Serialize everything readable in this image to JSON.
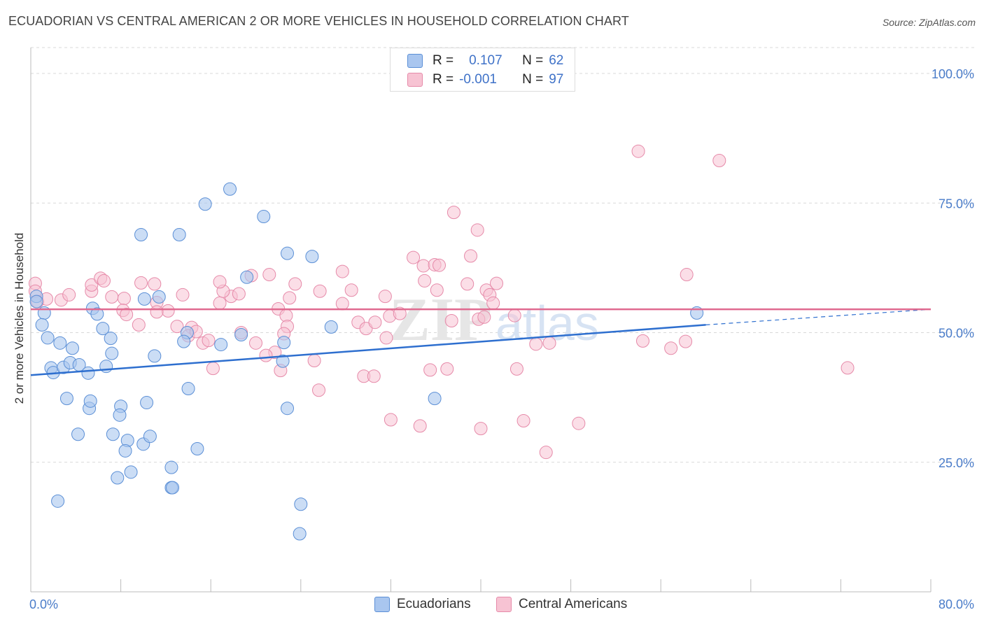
{
  "header": {
    "title": "ECUADORIAN VS CENTRAL AMERICAN 2 OR MORE VEHICLES IN HOUSEHOLD CORRELATION CHART",
    "source": "Source: ZipAtlas.com"
  },
  "watermark": "ZIPatlas",
  "colors": {
    "blue_fill": "#a9c6ef",
    "blue_stroke": "#5b8fd6",
    "blue_line": "#2e6fcf",
    "pink_fill": "#f7c3d3",
    "pink_stroke": "#e68aa9",
    "pink_line": "#e0698f",
    "tick_text": "#4a7cc9",
    "grid": "#d8d8d8"
  },
  "legend": {
    "rows": [
      {
        "r_label": "R =",
        "r_value": "0.107",
        "n_label": "N =",
        "n_value": "62",
        "color": "#a9c6ef",
        "border": "#5b8fd6"
      },
      {
        "r_label": "R =",
        "r_value": "-0.001",
        "n_label": "N =",
        "n_value": "97",
        "color": "#f7c3d3",
        "border": "#e68aa9"
      }
    ]
  },
  "bottom_legend": [
    {
      "label": "Ecuadorians",
      "color": "#a9c6ef",
      "border": "#5b8fd6"
    },
    {
      "label": "Central Americans",
      "color": "#f7c3d3",
      "border": "#e68aa9"
    }
  ],
  "chart_data": {
    "type": "scatter",
    "title": "ECUADORIAN VS CENTRAL AMERICAN 2 OR MORE VEHICLES IN HOUSEHOLD CORRELATION CHART",
    "xlabel": "",
    "ylabel": "2 or more Vehicles in Household",
    "xlim": [
      0,
      80
    ],
    "ylim": [
      0,
      105
    ],
    "x_tick_labels": [
      "0.0%",
      "80.0%"
    ],
    "y_ticks": [
      25,
      50,
      75,
      100
    ],
    "y_tick_labels": [
      "25.0%",
      "50.0%",
      "75.0%",
      "100.0%"
    ],
    "grid": true,
    "legend_position": "top-center",
    "series": [
      {
        "name": "Ecuadorians",
        "r": 0.107,
        "n": 62,
        "trend": {
          "x": [
            0,
            60
          ],
          "y": [
            41.8,
            51.5
          ],
          "dashed_to": [
            80,
            54.5
          ]
        },
        "points": [
          [
            0.5,
            57.0
          ],
          [
            0.5,
            56.0
          ],
          [
            1.2,
            53.8
          ],
          [
            1.0,
            51.5
          ],
          [
            1.5,
            49.0
          ],
          [
            2.6,
            48.0
          ],
          [
            3.7,
            47.0
          ],
          [
            7.1,
            48.9
          ],
          [
            1.8,
            43.2
          ],
          [
            2.0,
            42.3
          ],
          [
            2.9,
            43.3
          ],
          [
            3.5,
            44.2
          ],
          [
            4.3,
            43.8
          ],
          [
            5.1,
            42.2
          ],
          [
            6.7,
            43.5
          ],
          [
            7.2,
            46.0
          ],
          [
            5.5,
            54.7
          ],
          [
            5.9,
            53.6
          ],
          [
            6.4,
            50.8
          ],
          [
            11.0,
            45.5
          ],
          [
            11.4,
            56.9
          ],
          [
            10.1,
            56.5
          ],
          [
            13.9,
            50.0
          ],
          [
            13.6,
            48.3
          ],
          [
            16.9,
            47.7
          ],
          [
            18.7,
            49.6
          ],
          [
            19.2,
            60.7
          ],
          [
            22.5,
            48.1
          ],
          [
            22.4,
            44.5
          ],
          [
            26.7,
            51.1
          ],
          [
            20.7,
            72.4
          ],
          [
            17.7,
            77.7
          ],
          [
            15.5,
            74.8
          ],
          [
            9.8,
            68.9
          ],
          [
            13.2,
            68.9
          ],
          [
            22.8,
            65.3
          ],
          [
            25.0,
            64.7
          ],
          [
            59.2,
            53.8
          ],
          [
            3.2,
            37.3
          ],
          [
            5.2,
            35.4
          ],
          [
            5.3,
            36.8
          ],
          [
            8.0,
            35.8
          ],
          [
            7.9,
            34.1
          ],
          [
            10.3,
            36.5
          ],
          [
            14.0,
            39.2
          ],
          [
            22.8,
            35.4
          ],
          [
            35.9,
            37.3
          ],
          [
            4.2,
            30.4
          ],
          [
            7.3,
            30.4
          ],
          [
            8.6,
            29.2
          ],
          [
            10.0,
            28.5
          ],
          [
            8.4,
            27.2
          ],
          [
            10.6,
            30.0
          ],
          [
            14.8,
            27.6
          ],
          [
            7.7,
            22.0
          ],
          [
            8.9,
            23.1
          ],
          [
            12.5,
            20.1
          ],
          [
            12.6,
            20.1
          ],
          [
            12.5,
            24.0
          ],
          [
            2.4,
            17.5
          ],
          [
            24.0,
            16.9
          ],
          [
            23.9,
            11.2
          ]
        ]
      },
      {
        "name": "Central Americans",
        "r": -0.001,
        "n": 97,
        "trend": {
          "x": [
            0,
            80
          ],
          "y": [
            54.5,
            54.5
          ]
        },
        "points": [
          [
            0.4,
            59.5
          ],
          [
            0.4,
            58.0
          ],
          [
            0.6,
            56.0
          ],
          [
            1.4,
            56.5
          ],
          [
            2.7,
            56.3
          ],
          [
            3.4,
            57.3
          ],
          [
            5.4,
            58.0
          ],
          [
            5.4,
            59.2
          ],
          [
            6.2,
            60.5
          ],
          [
            6.5,
            60.0
          ],
          [
            7.2,
            56.9
          ],
          [
            8.3,
            56.6
          ],
          [
            8.2,
            54.3
          ],
          [
            8.5,
            53.5
          ],
          [
            9.6,
            51.5
          ],
          [
            9.8,
            59.6
          ],
          [
            11.0,
            59.4
          ],
          [
            11.2,
            55.8
          ],
          [
            12.2,
            54.2
          ],
          [
            11.2,
            54.0
          ],
          [
            13.0,
            51.2
          ],
          [
            14.3,
            51.0
          ],
          [
            14.0,
            49.4
          ],
          [
            14.7,
            50.2
          ],
          [
            15.3,
            48.0
          ],
          [
            13.5,
            57.3
          ],
          [
            16.8,
            55.7
          ],
          [
            17.8,
            57.0
          ],
          [
            18.5,
            57.5
          ],
          [
            19.6,
            61.0
          ],
          [
            21.2,
            61.2
          ],
          [
            22.0,
            54.6
          ],
          [
            22.7,
            53.3
          ],
          [
            23.5,
            59.4
          ],
          [
            23.0,
            56.7
          ],
          [
            22.8,
            51.2
          ],
          [
            22.5,
            49.8
          ],
          [
            21.7,
            46.2
          ],
          [
            20.9,
            45.6
          ],
          [
            20.0,
            48.0
          ],
          [
            18.7,
            50.0
          ],
          [
            17.1,
            58.0
          ],
          [
            16.8,
            59.8
          ],
          [
            15.8,
            48.5
          ],
          [
            16.2,
            43.1
          ],
          [
            25.7,
            58.0
          ],
          [
            27.7,
            61.8
          ],
          [
            27.7,
            55.6
          ],
          [
            28.5,
            58.2
          ],
          [
            29.1,
            52.0
          ],
          [
            29.8,
            50.8
          ],
          [
            30.6,
            52.0
          ],
          [
            31.6,
            49.0
          ],
          [
            31.9,
            53.2
          ],
          [
            31.5,
            57.0
          ],
          [
            32.8,
            53.7
          ],
          [
            34.0,
            64.5
          ],
          [
            34.9,
            62.9
          ],
          [
            35.0,
            60.0
          ],
          [
            35.9,
            63.1
          ],
          [
            36.3,
            63.0
          ],
          [
            36.1,
            58.2
          ],
          [
            37.4,
            52.3
          ],
          [
            38.8,
            59.4
          ],
          [
            39.1,
            64.8
          ],
          [
            39.8,
            52.6
          ],
          [
            40.5,
            58.2
          ],
          [
            40.3,
            53.0
          ],
          [
            40.8,
            57.3
          ],
          [
            41.1,
            55.7
          ],
          [
            37.6,
            73.2
          ],
          [
            39.7,
            69.8
          ],
          [
            41.4,
            59.5
          ],
          [
            43.0,
            53.3
          ],
          [
            44.9,
            47.8
          ],
          [
            46.1,
            48.0
          ],
          [
            54.4,
            48.4
          ],
          [
            56.9,
            47.0
          ],
          [
            58.2,
            48.3
          ],
          [
            58.3,
            61.2
          ],
          [
            29.6,
            41.6
          ],
          [
            30.5,
            41.6
          ],
          [
            22.2,
            42.7
          ],
          [
            25.2,
            44.6
          ],
          [
            25.6,
            38.9
          ],
          [
            35.5,
            42.8
          ],
          [
            37.0,
            43.0
          ],
          [
            43.2,
            43.0
          ],
          [
            32.0,
            33.2
          ],
          [
            34.6,
            32.0
          ],
          [
            40.0,
            31.5
          ],
          [
            43.8,
            33.0
          ],
          [
            45.8,
            26.9
          ],
          [
            48.7,
            32.5
          ],
          [
            54.0,
            85.0
          ],
          [
            61.2,
            83.2
          ],
          [
            72.6,
            43.2
          ]
        ]
      }
    ]
  }
}
